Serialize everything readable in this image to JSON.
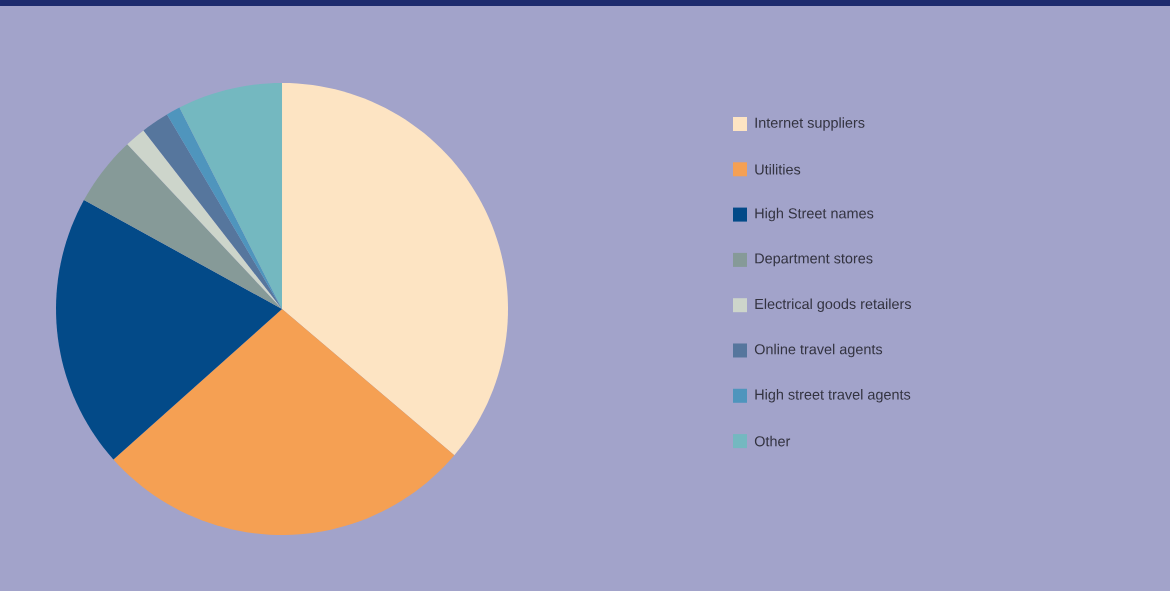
{
  "chart_data": {
    "type": "pie",
    "categories": [
      "Internet suppliers",
      "Utilities",
      "High Street names",
      "Department stores",
      "Electrical goods retailers",
      "Online travel agents",
      "High street travel agents",
      "Other"
    ],
    "values": [
      36.2,
      27.2,
      19.6,
      5.0,
      1.5,
      2.0,
      1.0,
      7.5
    ],
    "colors": [
      "#fde4c3",
      "#f5a053",
      "#034a88",
      "#869a98",
      "#cdd5cb",
      "#56769d",
      "#4f95bd",
      "#74b8c0"
    ],
    "legend": "right"
  }
}
